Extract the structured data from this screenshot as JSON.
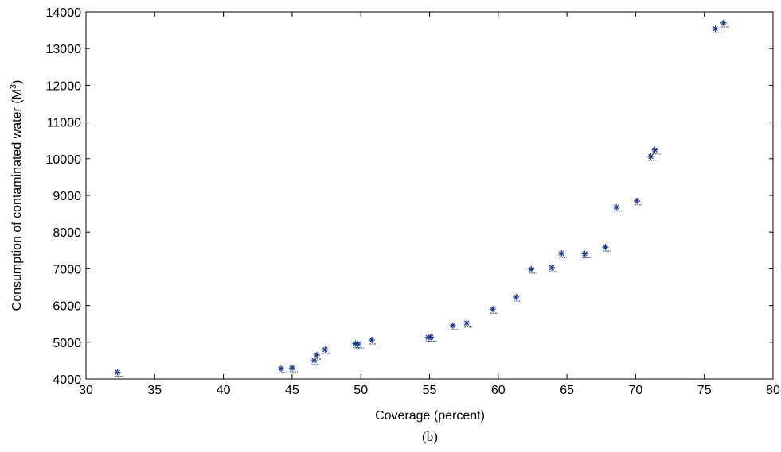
{
  "chart_data": {
    "type": "scatter",
    "xlabel": "Coverage (percent)",
    "ylabel_main": "Consumption of contaminated water (M",
    "ylabel_sup": "3",
    "ylabel_end": ")",
    "caption": "(b)",
    "xlim": [
      30,
      80
    ],
    "ylim": [
      4000,
      14000
    ],
    "xticks": [
      30,
      35,
      40,
      45,
      50,
      55,
      60,
      65,
      70,
      75,
      80
    ],
    "yticks": [
      4000,
      5000,
      6000,
      7000,
      8000,
      9000,
      10000,
      11000,
      12000,
      13000,
      14000
    ],
    "marker_color": "#1f3a8a",
    "grid": false,
    "series": [
      {
        "marker": "asterisk",
        "points": [
          [
            32.3,
            4180
          ],
          [
            44.2,
            4280
          ],
          [
            45.0,
            4300
          ],
          [
            46.6,
            4500
          ],
          [
            46.8,
            4650
          ],
          [
            47.4,
            4800
          ],
          [
            49.6,
            4960
          ],
          [
            49.8,
            4950
          ],
          [
            50.8,
            5060
          ],
          [
            54.9,
            5130
          ],
          [
            55.1,
            5140
          ],
          [
            56.7,
            5450
          ],
          [
            57.7,
            5520
          ],
          [
            59.6,
            5900
          ],
          [
            61.3,
            6230
          ],
          [
            62.4,
            6990
          ],
          [
            63.9,
            7030
          ],
          [
            64.6,
            7420
          ],
          [
            66.3,
            7410
          ],
          [
            67.8,
            7590
          ],
          [
            68.6,
            8680
          ],
          [
            70.1,
            8850
          ],
          [
            71.1,
            10060
          ],
          [
            71.4,
            10240
          ],
          [
            75.8,
            13540
          ],
          [
            76.4,
            13700
          ]
        ]
      }
    ]
  }
}
